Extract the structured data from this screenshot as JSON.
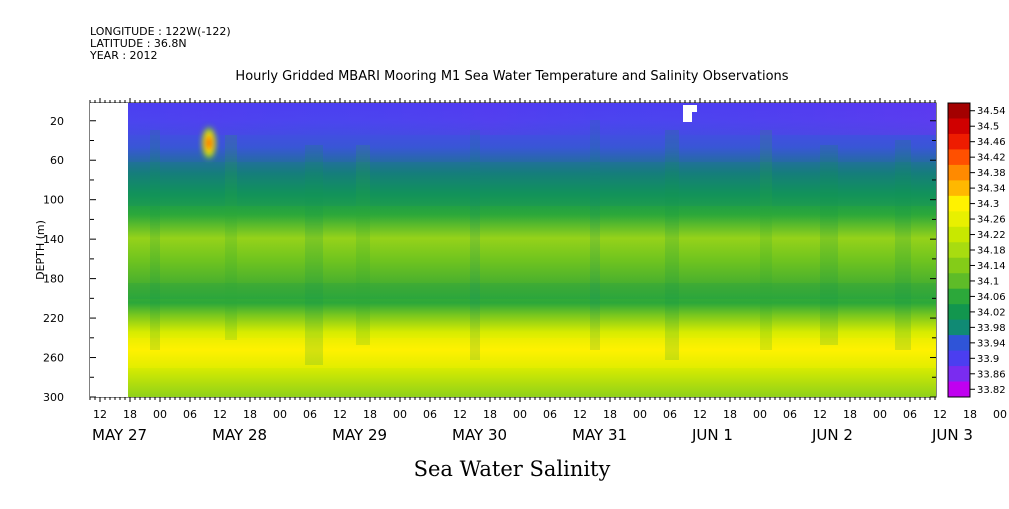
{
  "header": {
    "longitude": "LONGITUDE : 122W(-122)",
    "latitude": "LATITUDE : 36.8N",
    "year": "YEAR : 2012"
  },
  "chart_data": {
    "type": "heatmap",
    "title": "Hourly Gridded MBARI Mooring M1 Sea Water Temperature and Salinity Observations",
    "xlabel": "",
    "ylabel": "DEPTH (m)",
    "footer_title": "Sea Water Salinity",
    "x_ticks": [
      "12",
      "18",
      "00",
      "06",
      "12",
      "18",
      "00",
      "06",
      "12",
      "18",
      "00",
      "06",
      "12",
      "18",
      "00",
      "06",
      "12",
      "18",
      "00",
      "06",
      "12",
      "18",
      "00",
      "06",
      "12",
      "18",
      "00",
      "06",
      "12",
      "18",
      "00",
      "06"
    ],
    "x_dates": [
      "MAY 27",
      "MAY 28",
      "MAY 29",
      "MAY 30",
      "MAY 31",
      "JUN  1",
      "JUN  2",
      "JUN  3"
    ],
    "y_ticks": [
      20,
      60,
      100,
      140,
      180,
      220,
      260,
      300
    ],
    "ylim": [
      300,
      2
    ],
    "colorbar": {
      "labels": [
        "34.54",
        "34.5",
        "34.46",
        "34.42",
        "34.38",
        "34.34",
        "34.3",
        "34.26",
        "34.22",
        "34.18",
        "34.14",
        "34.1",
        "34.06",
        "34.02",
        "33.98",
        "33.94",
        "33.9",
        "33.86",
        "33.82"
      ],
      "colors": [
        "#a30000",
        "#d00000",
        "#ee1c00",
        "#ff5000",
        "#ff8a00",
        "#ffb800",
        "#fff200",
        "#e8f000",
        "#c8e800",
        "#a8dc10",
        "#84cc18",
        "#5ebc28",
        "#2ca83a",
        "#12964e",
        "#108a74",
        "#2f54d8",
        "#4b3ef0",
        "#7a2cf0",
        "#c000f0"
      ]
    },
    "grid": false,
    "legend_position": "right"
  }
}
